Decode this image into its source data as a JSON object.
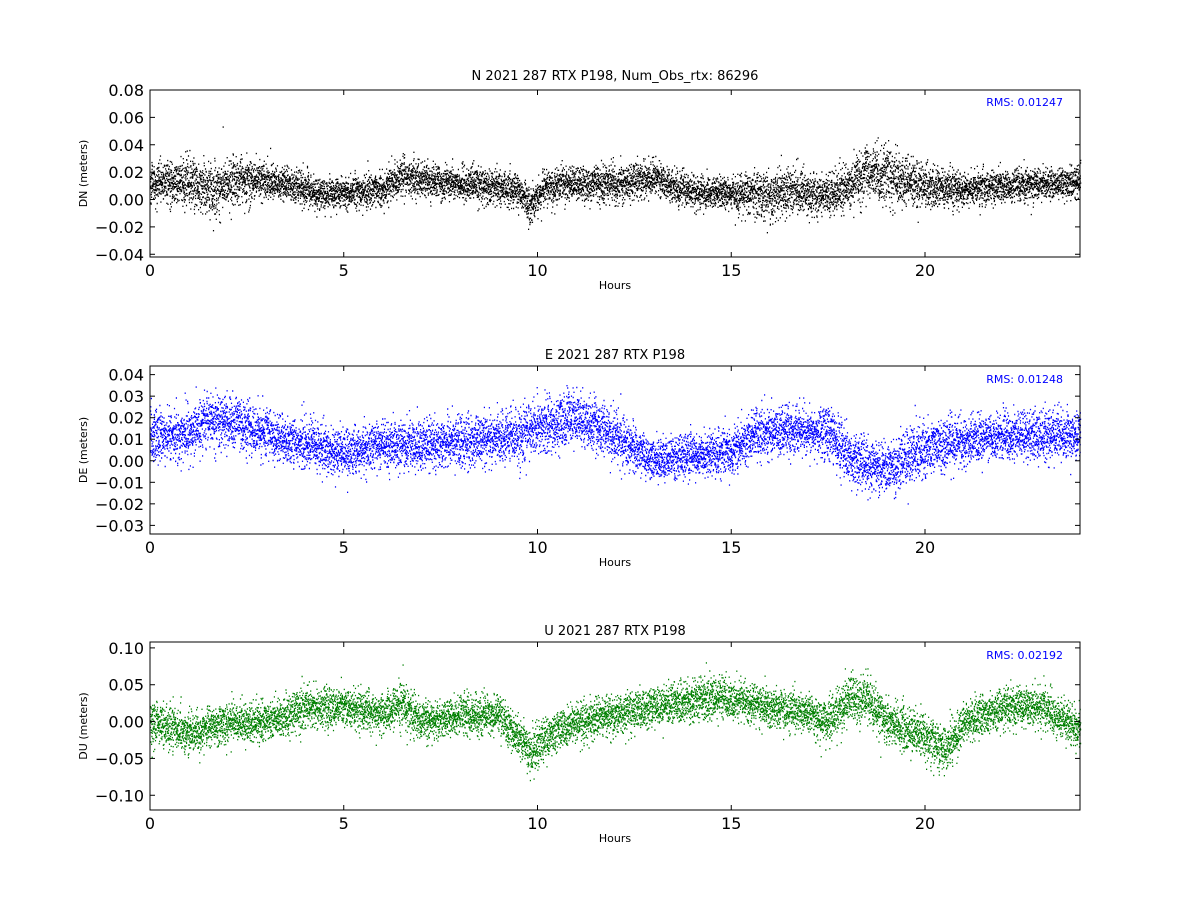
{
  "colors": {
    "panel_n": "#000000",
    "panel_e": "#0000ff",
    "panel_u": "#008000",
    "rms_text": "#0000ff"
  },
  "chart_data": [
    {
      "id": "n",
      "type": "scatter",
      "title": "N 2021 287 RTX  P198, Num_Obs_rtx: 86296",
      "xlabel": "Hours",
      "ylabel": "DN (meters)",
      "xlim": [
        0,
        24
      ],
      "ylim": [
        -0.042,
        0.08
      ],
      "xticks": [
        0,
        5,
        10,
        15,
        20
      ],
      "xtick_labels": [
        "0",
        "5",
        "10",
        "15",
        "20"
      ],
      "yticks": [
        -0.04,
        -0.02,
        0.0,
        0.02,
        0.04,
        0.06,
        0.08
      ],
      "ytick_labels": [
        "−0.04",
        "−0.02",
        "0.00",
        "0.02",
        "0.04",
        "0.06",
        "0.08"
      ],
      "annotation": "RMS:  0.01247",
      "color": "#000000",
      "trend_x": [
        0,
        1,
        1.5,
        2.5,
        3.5,
        4.5,
        5,
        6,
        6.5,
        7,
        8,
        9,
        9.5,
        9.8,
        10.2,
        11,
        12,
        13,
        14,
        15,
        15.5,
        16,
        16.5,
        17,
        17.5,
        18,
        18.5,
        19,
        20,
        21,
        22,
        23,
        24
      ],
      "trend_y": [
        0.012,
        0.013,
        0.008,
        0.016,
        0.012,
        0.004,
        0.005,
        0.008,
        0.018,
        0.014,
        0.012,
        0.01,
        0.006,
        -0.005,
        0.01,
        0.012,
        0.012,
        0.016,
        0.006,
        0.005,
        0.005,
        0.003,
        0.008,
        0.004,
        0.004,
        0.008,
        0.022,
        0.018,
        0.01,
        0.008,
        0.01,
        0.012,
        0.014
      ],
      "spread_y": [
        0.011,
        0.014,
        0.016,
        0.013,
        0.01,
        0.009,
        0.009,
        0.01,
        0.011,
        0.011,
        0.01,
        0.01,
        0.01,
        0.011,
        0.01,
        0.01,
        0.011,
        0.01,
        0.01,
        0.009,
        0.012,
        0.016,
        0.013,
        0.012,
        0.012,
        0.012,
        0.016,
        0.018,
        0.012,
        0.01,
        0.01,
        0.01,
        0.01
      ]
    },
    {
      "id": "e",
      "type": "scatter",
      "title": "E 2021 287 RTX  P198",
      "xlabel": "Hours",
      "ylabel": "DE (meters)",
      "xlim": [
        0,
        24
      ],
      "ylim": [
        -0.034,
        0.044
      ],
      "xticks": [
        0,
        5,
        10,
        15,
        20
      ],
      "xtick_labels": [
        "0",
        "5",
        "10",
        "15",
        "20"
      ],
      "yticks": [
        -0.03,
        -0.02,
        -0.01,
        0.0,
        0.01,
        0.02,
        0.03,
        0.04
      ],
      "ytick_labels": [
        "−0.03",
        "−0.02",
        "−0.01",
        "0.00",
        "0.01",
        "0.02",
        "0.03",
        "0.04"
      ],
      "annotation": "RMS:  0.01248",
      "color": "#0000ff",
      "trend_x": [
        0,
        1,
        1.5,
        2.5,
        3.5,
        5,
        6,
        7,
        8.5,
        9.5,
        10,
        10.5,
        11,
        12,
        13,
        14,
        15,
        15.5,
        16,
        17,
        17.5,
        18,
        19,
        20,
        21,
        22,
        23,
        24
      ],
      "trend_y": [
        0.012,
        0.012,
        0.02,
        0.016,
        0.01,
        0.004,
        0.008,
        0.008,
        0.01,
        0.012,
        0.016,
        0.018,
        0.02,
        0.012,
        0.0,
        0.003,
        0.004,
        0.012,
        0.014,
        0.014,
        0.014,
        0.002,
        -0.004,
        0.006,
        0.01,
        0.012,
        0.012,
        0.012
      ],
      "spread_y": [
        0.01,
        0.01,
        0.01,
        0.01,
        0.009,
        0.009,
        0.009,
        0.009,
        0.009,
        0.01,
        0.01,
        0.01,
        0.01,
        0.01,
        0.008,
        0.008,
        0.008,
        0.009,
        0.009,
        0.009,
        0.01,
        0.01,
        0.01,
        0.01,
        0.009,
        0.009,
        0.009,
        0.009
      ]
    },
    {
      "id": "u",
      "type": "scatter",
      "title": "U 2021 287 RTX  P198",
      "xlabel": "Hours",
      "ylabel": "DU (meters)",
      "xlim": [
        0,
        24
      ],
      "ylim": [
        -0.12,
        0.108
      ],
      "xticks": [
        0,
        5,
        10,
        15,
        20
      ],
      "xtick_labels": [
        "0",
        "5",
        "10",
        "15",
        "20"
      ],
      "yticks": [
        -0.1,
        -0.05,
        0.0,
        0.05,
        0.1
      ],
      "ytick_labels": [
        "−0.10",
        "−0.05",
        "0.00",
        "0.05",
        "0.10"
      ],
      "annotation": "RMS:  0.02192",
      "color": "#008000",
      "trend_x": [
        0,
        1,
        2,
        3,
        4,
        5,
        6,
        6.5,
        7,
        8,
        9,
        9.5,
        9.8,
        10.5,
        11,
        12,
        13,
        14,
        14.5,
        15,
        16,
        17,
        17.5,
        18,
        18.5,
        19,
        20,
        20.5,
        21,
        22,
        23,
        24
      ],
      "trend_y": [
        0.0,
        -0.015,
        0.0,
        0.0,
        0.02,
        0.02,
        0.01,
        0.025,
        0.0,
        0.01,
        0.01,
        -0.02,
        -0.04,
        -0.01,
        0.0,
        0.01,
        0.02,
        0.03,
        0.035,
        0.03,
        0.02,
        0.01,
        0.0,
        0.03,
        0.035,
        0.0,
        -0.02,
        -0.04,
        0.0,
        0.02,
        0.02,
        -0.01
      ],
      "spread_y": [
        0.022,
        0.024,
        0.022,
        0.022,
        0.024,
        0.022,
        0.022,
        0.024,
        0.022,
        0.022,
        0.022,
        0.024,
        0.026,
        0.022,
        0.022,
        0.022,
        0.022,
        0.024,
        0.024,
        0.022,
        0.022,
        0.022,
        0.024,
        0.026,
        0.026,
        0.024,
        0.024,
        0.026,
        0.022,
        0.022,
        0.022,
        0.022
      ]
    }
  ]
}
